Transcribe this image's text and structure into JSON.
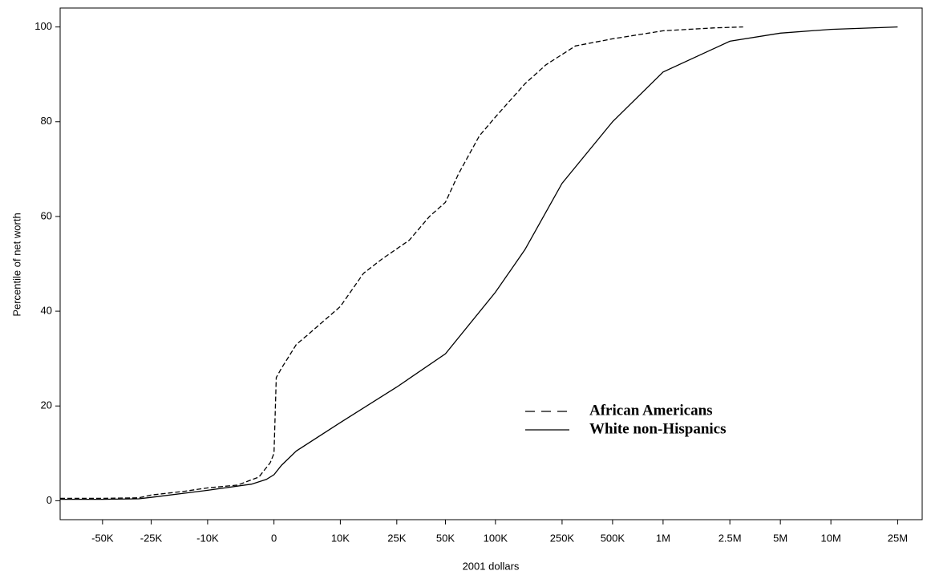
{
  "chart_data": {
    "type": "line",
    "x_label": "2001 dollars",
    "y_label": "Percentile of net worth",
    "xscale": "asinh",
    "xlim": [
      -90000,
      35000000
    ],
    "ylim": [
      -4,
      104
    ],
    "xticks": [
      {
        "value": -50000,
        "label": "-50K"
      },
      {
        "value": -25000,
        "label": "-25K"
      },
      {
        "value": -10000,
        "label": "-10K"
      },
      0,
      {
        "value": 10000,
        "label": "10K"
      },
      {
        "value": 25000,
        "label": "25K"
      },
      {
        "value": 50000,
        "label": "50K"
      },
      {
        "value": 100000,
        "label": "100K"
      },
      {
        "value": 250000,
        "label": "250K"
      },
      {
        "value": 500000,
        "label": "500K"
      },
      {
        "value": 1000000,
        "label": "1M"
      },
      {
        "value": 2500000,
        "label": "2.5M"
      },
      {
        "value": 5000000,
        "label": "5M"
      },
      {
        "value": 10000000,
        "label": "10M"
      },
      {
        "value": 25000000,
        "label": "25M"
      }
    ],
    "yticks": [
      0,
      20,
      40,
      60,
      80,
      100
    ],
    "legend": "center-right",
    "series": [
      {
        "name": "African Americans",
        "color": "#000000",
        "style": "dashed",
        "x": [
          -90000,
          -50000,
          -30000,
          -25000,
          -15000,
          -10000,
          -5000,
          -2000,
          -500,
          0,
          300,
          1000,
          1800,
          3000,
          4600,
          10000,
          15000,
          20000,
          30000,
          40000,
          50000,
          60000,
          80000,
          100000,
          150000,
          200000,
          300000,
          500000,
          1000000,
          2000000,
          3000000
        ],
        "values": [
          0.5,
          0.5,
          0.6,
          1.2,
          2,
          2.7,
          3.3,
          5,
          8,
          10,
          26,
          28,
          30,
          33,
          35,
          41,
          48,
          51,
          55,
          60,
          63,
          69,
          77,
          81,
          88,
          92,
          96,
          97.5,
          99.2,
          99.8,
          100
        ]
      },
      {
        "name": "White non-Hispanics",
        "color": "#000000",
        "style": "solid",
        "x": [
          -90000,
          -50000,
          -30000,
          -25000,
          -10000,
          -3000,
          -1000,
          0,
          1000,
          3000,
          10000,
          25000,
          50000,
          100000,
          150000,
          250000,
          500000,
          1000000,
          2500000,
          5000000,
          10000000,
          25000000
        ],
        "values": [
          0.3,
          0.3,
          0.4,
          0.7,
          2.2,
          3.5,
          4.5,
          5.5,
          7.5,
          10.5,
          16.5,
          24,
          31,
          44,
          53,
          67,
          80,
          90.5,
          97,
          98.7,
          99.5,
          100
        ]
      }
    ]
  }
}
